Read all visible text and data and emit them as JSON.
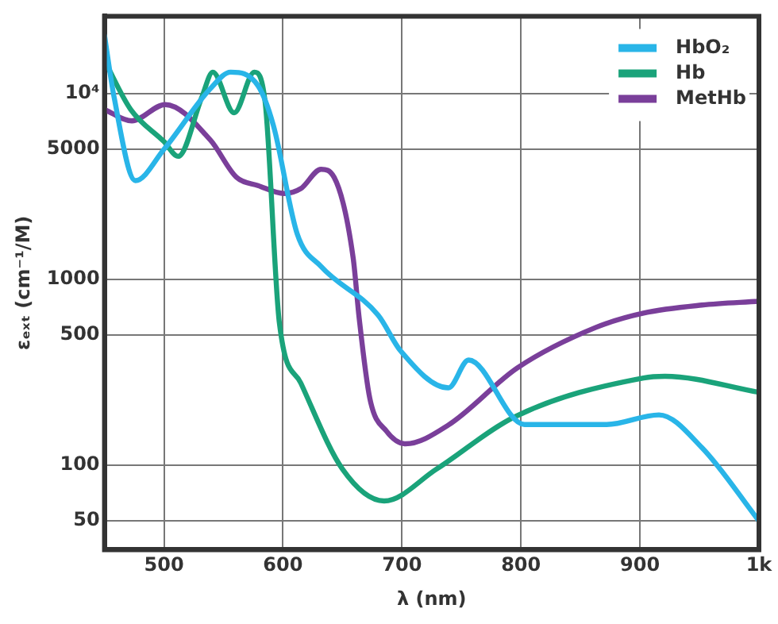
{
  "chart_data": {
    "type": "line",
    "xlabel": "λ (nm)",
    "ylabel": "εₑₓₜ (cm⁻¹/M)",
    "log": "y",
    "grid": true,
    "legend": "top right",
    "marker": "none",
    "line_style": "solid",
    "xlim": [
      450,
      1000
    ],
    "xticks": [
      500,
      600,
      700,
      800,
      900,
      {
        "value": 1000,
        "label": "1k"
      }
    ],
    "ylim": [
      35,
      26000
    ],
    "yticks": [
      50,
      100,
      500,
      1000,
      5000,
      {
        "value": 10000,
        "label": "10⁴"
      }
    ],
    "series": [
      {
        "name": "HbO₂",
        "color": "#29b5e8",
        "x": [
          450,
          458,
          476,
          500,
          539,
          556,
          579,
          592,
          612,
          632,
          680,
          699,
          739,
          756,
          803,
          872,
          916,
          952,
          1000
        ],
        "values": [
          20500,
          9600,
          3390,
          5000,
          10600,
          13000,
          11000,
          6700,
          1750,
          1170,
          640,
          410,
          260,
          367,
          165,
          165,
          186,
          124,
          50
        ]
      },
      {
        "name": "Hb",
        "color": "#1aa37a",
        "x": [
          450,
          472,
          500,
          512,
          532,
          541,
          559,
          576,
          585,
          597,
          615,
          650,
          685,
          729,
          795,
          903,
          921,
          1000
        ],
        "values": [
          15000,
          8190,
          5500,
          4580,
          9600,
          13000,
          7860,
          13000,
          9000,
          580,
          276,
          95,
          64,
          95,
          182,
          294,
          300,
          246
        ]
      },
      {
        "name": "MetHb",
        "color": "#7a3f9a",
        "x": [
          450,
          473,
          501,
          539,
          561,
          579,
          601,
          615,
          632,
          643,
          659,
          664,
          673,
          687,
          703,
          739,
          797,
          863,
          903,
          952,
          1000
        ],
        "values": [
          8180,
          7110,
          8700,
          5600,
          3530,
          3190,
          2890,
          3070,
          3900,
          3530,
          1300,
          620,
          228,
          152,
          130,
          164,
          333,
          550,
          657,
          725,
          760
        ]
      }
    ]
  }
}
